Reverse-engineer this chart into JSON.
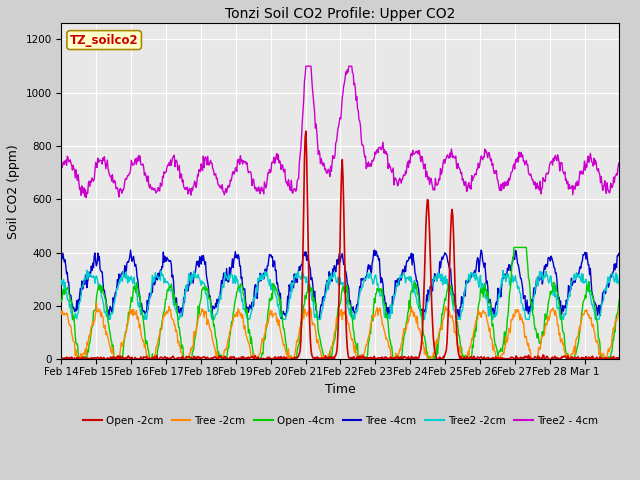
{
  "title": "Tonzi Soil CO2 Profile: Upper CO2",
  "xlabel": "Time",
  "ylabel": "Soil CO2 (ppm)",
  "legend_label": "TZ_soilco2",
  "ylim": [
    0,
    1260
  ],
  "yticks": [
    0,
    200,
    400,
    600,
    800,
    1000,
    1200
  ],
  "fig_bg_color": "#d0d0d0",
  "plot_bg_color": "#e8e8e8",
  "series": {
    "Open_2cm": {
      "color": "#cc0000",
      "label": "Open -2cm"
    },
    "Tree_2cm": {
      "color": "#ff8800",
      "label": "Tree -2cm"
    },
    "Open_4cm": {
      "color": "#00cc00",
      "label": "Open -4cm"
    },
    "Tree_4cm": {
      "color": "#0000cc",
      "label": "Tree -4cm"
    },
    "Tree2_2cm": {
      "color": "#00cccc",
      "label": "Tree2 -2cm"
    },
    "Tree2_4cm": {
      "color": "#cc00cc",
      "label": "Tree2 - 4cm"
    }
  },
  "xticklabels": [
    "Feb 14",
    "Feb 15",
    "Feb 16",
    "Feb 17",
    "Feb 18",
    "Feb 19",
    "Feb 20",
    "Feb 21",
    "Feb 22",
    "Feb 23",
    "Feb 24",
    "Feb 25",
    "Feb 26",
    "Feb 27",
    "Feb 28",
    "Mar 1"
  ],
  "n_days": 16,
  "points_per_day": 48
}
